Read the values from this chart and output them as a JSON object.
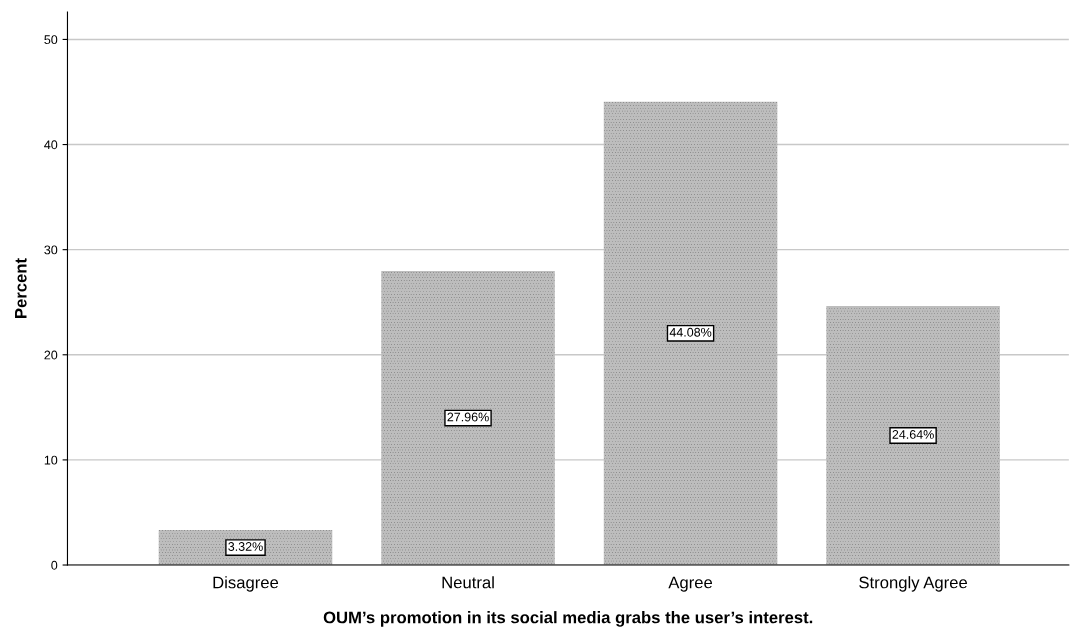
{
  "chart_data": {
    "type": "bar",
    "xlabel": "OUM’s promotion in its social media grabs the user’s interest.",
    "ylabel": "Percent",
    "categories": [
      "Disagree",
      "Neutral",
      "Agree",
      "Strongly Agree"
    ],
    "values": [
      3.32,
      27.96,
      44.08,
      24.64
    ],
    "value_labels": [
      "3.32%",
      "27.96%",
      "44.08%",
      "24.64%"
    ],
    "color": "#bdbdbd",
    "ylim": [
      0,
      52.6
    ],
    "yticks": [
      0,
      10,
      20,
      30,
      40,
      50
    ],
    "grid": "y",
    "legend": false
  }
}
